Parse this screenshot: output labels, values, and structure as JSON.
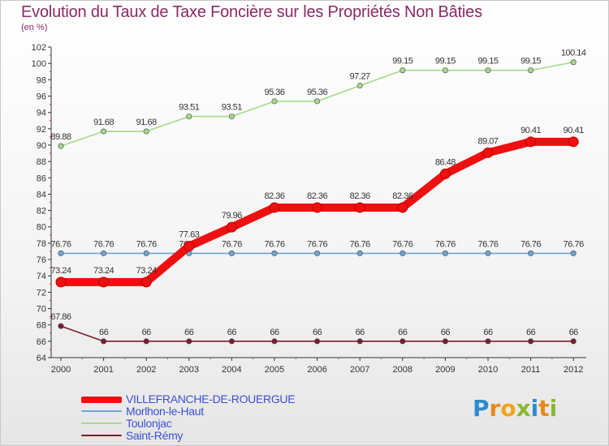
{
  "title": "Evolution du Taux de Taxe Foncière sur les Propriétés Non Bâties",
  "subtitle": "(en %)",
  "brand": {
    "letters": [
      "P",
      "r",
      "o",
      "x",
      "i",
      "t",
      "i"
    ]
  },
  "chart_data": {
    "type": "line",
    "title": "Evolution du Taux de Taxe Foncière sur les Propriétés Non Bâties",
    "ylabel": "(en %)",
    "xlabel": "",
    "ylim": [
      64,
      102
    ],
    "yticks": [
      "64",
      "66",
      "68",
      "70",
      "72",
      "74",
      "76",
      "78",
      "80",
      "82",
      "84",
      "86",
      "88",
      "90",
      "92",
      "94",
      "96",
      "98",
      "100",
      "102"
    ],
    "categories": [
      "2000",
      "2001",
      "2002",
      "2003",
      "2004",
      "2005",
      "2006",
      "2007",
      "2008",
      "2009",
      "2010",
      "2011",
      "2012"
    ],
    "grid": false,
    "legend_position": "bottom-left",
    "series": [
      {
        "name": "Saint-Rémy",
        "color": "#7a1e2c",
        "values": [
          67.86,
          66,
          66,
          66,
          66,
          66,
          66,
          66,
          66,
          66,
          66,
          66,
          66
        ],
        "labels": [
          "67.86",
          "66",
          "66",
          "66",
          "66",
          "66",
          "66",
          "66",
          "66",
          "66",
          "66",
          "66",
          "66"
        ]
      },
      {
        "name": "Morlhon-le-Haut",
        "color": "#6ea4d6",
        "values": [
          76.76,
          76.76,
          76.76,
          76.76,
          76.76,
          76.76,
          76.76,
          76.76,
          76.76,
          76.76,
          76.76,
          76.76,
          76.76
        ],
        "labels": [
          "76.76",
          "76.76",
          "76.76",
          "76.76",
          "76.76",
          "76.76",
          "76.76",
          "76.76",
          "76.76",
          "76.76",
          "76.76",
          "76.76",
          "76.76"
        ]
      },
      {
        "name": "Toulonjac",
        "color": "#a6d98a",
        "values": [
          89.88,
          91.68,
          91.68,
          93.51,
          93.51,
          95.36,
          95.36,
          97.27,
          99.15,
          99.15,
          99.15,
          99.15,
          100.14
        ],
        "labels": [
          "89.88",
          "91.68",
          "91.68",
          "93.51",
          "93.51",
          "95.36",
          "95.36",
          "97.27",
          "99.15",
          "99.15",
          "99.15",
          "99.15",
          "100.14"
        ]
      },
      {
        "name": "VILLEFRANCHE-DE-ROUERGUE",
        "color": "#ee1010",
        "values": [
          73.24,
          73.24,
          73.24,
          77.63,
          79.96,
          82.36,
          82.36,
          82.36,
          82.36,
          86.48,
          89.07,
          90.41,
          90.41
        ],
        "labels": [
          "73.24",
          "73.24",
          "73.24",
          "77.63",
          "79.96",
          "82.36",
          "82.36",
          "82.36",
          "82.36",
          "86.48",
          "89.07",
          "90.41",
          "90.41"
        ]
      }
    ],
    "legend_order": [
      "VILLEFRANCHE-DE-ROUERGUE",
      "Morlhon-le-Haut",
      "Toulonjac",
      "Saint-Rémy"
    ]
  }
}
